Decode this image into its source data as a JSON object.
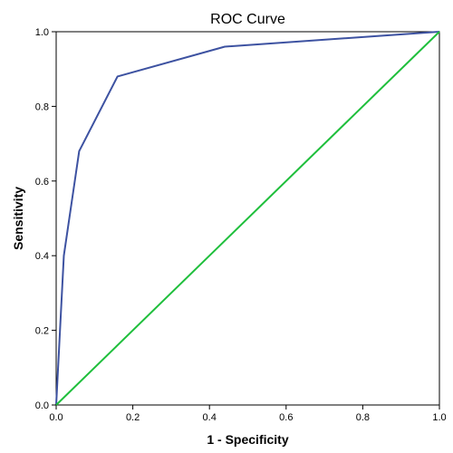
{
  "chart_data": {
    "type": "line",
    "title": "ROC Curve",
    "xlabel": "1 - Specificity",
    "ylabel": "Sensitivity",
    "xlim": [
      0,
      1
    ],
    "ylim": [
      0,
      1
    ],
    "xticks": [
      "0.0",
      "0.2",
      "0.4",
      "0.6",
      "0.8",
      "1.0"
    ],
    "yticks": [
      "0.0",
      "0.2",
      "0.4",
      "0.6",
      "0.8",
      "1.0"
    ],
    "grid": false,
    "series": [
      {
        "color": "#3d52a1",
        "x": [
          0.0,
          0.02,
          0.06,
          0.16,
          0.44,
          1.0
        ],
        "y": [
          0.0,
          0.4,
          0.68,
          0.88,
          0.96,
          1.0
        ]
      },
      {
        "color": "#1fbf3c",
        "x": [
          0.0,
          1.0
        ],
        "y": [
          0.0,
          1.0
        ]
      }
    ]
  }
}
